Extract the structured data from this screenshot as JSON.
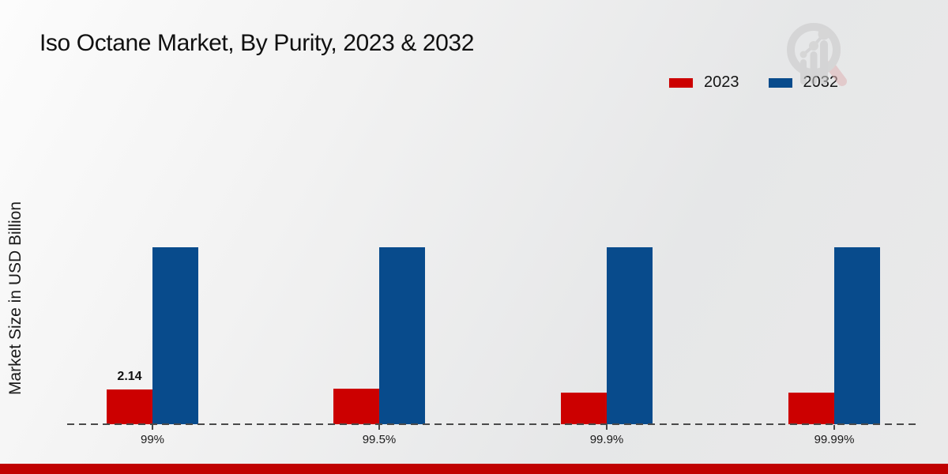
{
  "page": {
    "title": "Iso Octane Market, By Purity, 2023 & 2032",
    "y_axis_label": "Market Size in USD Billion"
  },
  "chart_data": {
    "type": "bar",
    "title": "Iso Octane Market, By Purity, 2023 & 2032",
    "categories": [
      "99%",
      "99.5%",
      "99.9%",
      "99.99%"
    ],
    "series": [
      {
        "name": "2023",
        "color": "#CC0000",
        "values": [
          2.14,
          2.2,
          1.95,
          1.95
        ],
        "data_labels": [
          "2.14",
          "",
          "",
          ""
        ]
      },
      {
        "name": "2032",
        "color": "#084B8C",
        "values": [
          10.9,
          10.9,
          10.9,
          10.9
        ],
        "data_labels": [
          "",
          "",
          "",
          ""
        ]
      }
    ],
    "xlabel": "",
    "ylabel": "Market Size in USD Billion",
    "ylim": [
      0,
      12
    ],
    "grid": false,
    "legend_position": "top-right",
    "baseline_style": "dashed",
    "only_labeled_point": "first 2023 bar shows value 2.14"
  },
  "footer": {
    "accent_color": "#C00101"
  },
  "watermark": {
    "icon": "magnifier-bar-chart-logo"
  }
}
